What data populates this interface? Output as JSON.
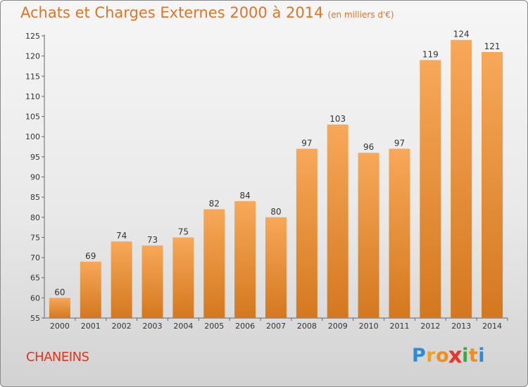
{
  "header": {
    "title": "Achats et Charges Externes 2000 à 2014",
    "subtitle": "(en milliers d'€)"
  },
  "footer": {
    "commune": "CHANEINS",
    "logo_letters": [
      "P",
      "r",
      "o",
      "x",
      "i",
      "t",
      "i"
    ],
    "logo_colors": [
      "#2f8bd6",
      "#f0a321",
      "#f28c1f",
      "#e8362b",
      "#3aa847",
      "#f28c1f",
      "#2f8bd6"
    ]
  },
  "colors": {
    "bar_top": "#f7a858",
    "bar_bottom": "#d4781f",
    "text": "#333333",
    "title": "#e0752a"
  },
  "chart_data": {
    "type": "bar",
    "categories": [
      "2000",
      "2001",
      "2002",
      "2003",
      "2004",
      "2005",
      "2006",
      "2007",
      "2008",
      "2009",
      "2010",
      "2011",
      "2012",
      "2013",
      "2014"
    ],
    "values": [
      60,
      69,
      74,
      73,
      75,
      82,
      84,
      80,
      97,
      103,
      96,
      97,
      119,
      124,
      121
    ],
    "yticks": [
      55,
      60,
      65,
      70,
      75,
      80,
      85,
      90,
      95,
      100,
      105,
      110,
      115,
      120,
      125
    ],
    "ylim": [
      55,
      125
    ],
    "grid": false,
    "title": "Achats et Charges Externes 2000 à 2014",
    "subtitle": "(en milliers d'€)",
    "xlabel": "",
    "ylabel": ""
  }
}
